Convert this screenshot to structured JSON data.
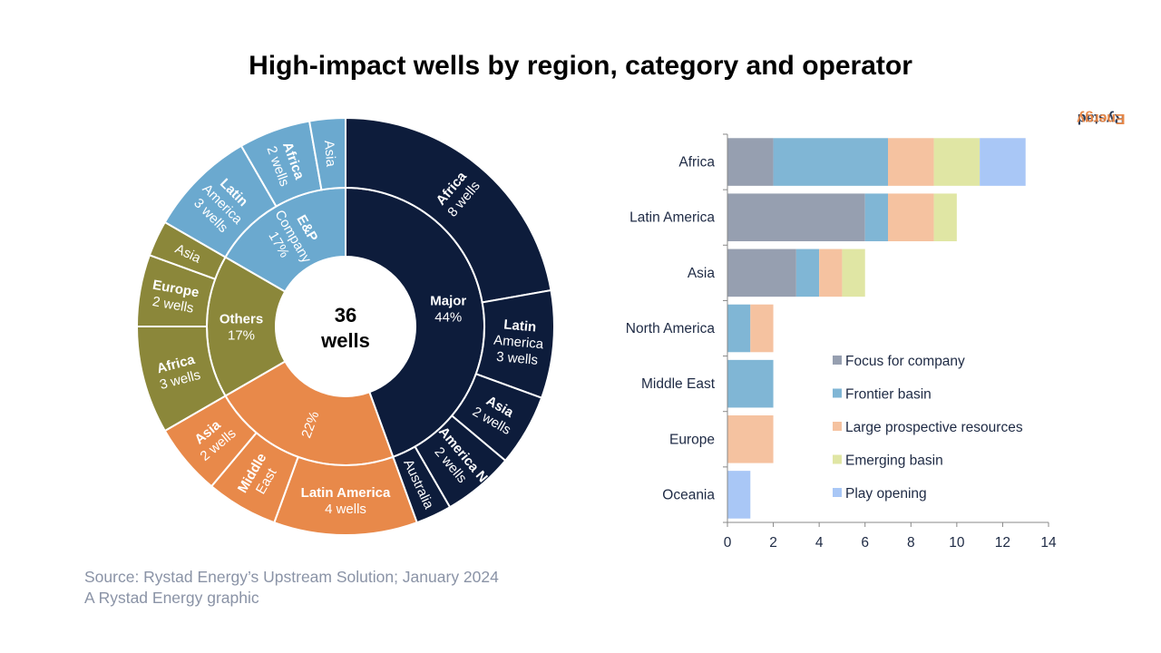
{
  "title": "High-impact wells by region, category and operator",
  "brand": {
    "part1": "Rystad",
    "part2": "Energy"
  },
  "source": {
    "line1": "Source: Rystad Energy’s Upstream Solution; January 2024",
    "line2": "A Rystad Energy graphic"
  },
  "chart_data": [
    {
      "type": "pie",
      "variant": "sunburst",
      "center_label": [
        "36",
        "wells"
      ],
      "total": 36,
      "inner_ring": [
        {
          "name": "Major",
          "label": [
            "Major",
            "44%"
          ],
          "value": 16,
          "color": "#0d1c3b",
          "text_color": "#ffffff"
        },
        {
          "name": "22%",
          "label": [
            "22%"
          ],
          "value": 8,
          "color": "#e8894a",
          "text_color": "#ffffff"
        },
        {
          "name": "Others",
          "label": [
            "Others",
            "17%"
          ],
          "value": 6,
          "color": "#8b873a",
          "text_color": "#ffffff"
        },
        {
          "name": "E&P Company",
          "label": [
            "E&P",
            "Company",
            "17%"
          ],
          "value": 6,
          "color": "#6ba9cf",
          "text_color": "#ffffff"
        }
      ],
      "outer_ring": [
        {
          "parent": "Major",
          "label": [
            "Africa",
            "8 wells"
          ],
          "value": 8
        },
        {
          "parent": "Major",
          "label": [
            "Latin",
            "America",
            "3 wells"
          ],
          "value": 3
        },
        {
          "parent": "Major",
          "label": [
            "Asia",
            "2 wells"
          ],
          "value": 2
        },
        {
          "parent": "Major",
          "label": [
            "America N",
            "2 wells"
          ],
          "value": 2
        },
        {
          "parent": "Major",
          "label": [
            "Australia"
          ],
          "value": 1
        },
        {
          "parent": "22%",
          "label": [
            "Latin America",
            "4 wells"
          ],
          "value": 4
        },
        {
          "parent": "22%",
          "label": [
            "Middle",
            "East"
          ],
          "value": 2
        },
        {
          "parent": "22%",
          "label": [
            "Asia",
            "2 wells"
          ],
          "value": 2
        },
        {
          "parent": "Others",
          "label": [
            "Africa",
            "3 wells"
          ],
          "value": 3
        },
        {
          "parent": "Others",
          "label": [
            "Europe",
            "2 wells"
          ],
          "value": 2
        },
        {
          "parent": "Others",
          "label": [
            "Asia"
          ],
          "value": 1
        },
        {
          "parent": "E&P Company",
          "label": [
            "Latin",
            "America",
            "3 wells"
          ],
          "value": 3
        },
        {
          "parent": "E&P Company",
          "label": [
            "Africa",
            "2 wells"
          ],
          "value": 2
        },
        {
          "parent": "E&P Company",
          "label": [
            "Asia"
          ],
          "value": 1
        }
      ]
    },
    {
      "type": "bar",
      "orientation": "horizontal",
      "stacked": true,
      "categories": [
        "Africa",
        "Latin America",
        "Asia",
        "North America",
        "Middle East",
        "Europe",
        "Oceania"
      ],
      "series": [
        {
          "name": "Focus for company",
          "color": "#969fb0",
          "values": [
            2,
            6,
            3,
            0,
            0,
            0,
            0
          ]
        },
        {
          "name": "Frontier basin",
          "color": "#80b6d5",
          "values": [
            5,
            1,
            1,
            1,
            2,
            0,
            0
          ]
        },
        {
          "name": "Large prospective resources",
          "color": "#f5c2a0",
          "values": [
            2,
            2,
            1,
            1,
            0,
            2,
            0
          ]
        },
        {
          "name": "Emerging basin",
          "color": "#e0e6a4",
          "values": [
            2,
            1,
            1,
            0,
            0,
            0,
            0
          ]
        },
        {
          "name": "Play opening",
          "color": "#a9c7f6",
          "values": [
            2,
            0,
            0,
            0,
            0,
            0,
            1
          ]
        }
      ],
      "xlim": [
        0,
        14
      ],
      "xticks": [
        0,
        2,
        4,
        6,
        8,
        10,
        12,
        14
      ],
      "legend_position": "bottom-right"
    }
  ]
}
